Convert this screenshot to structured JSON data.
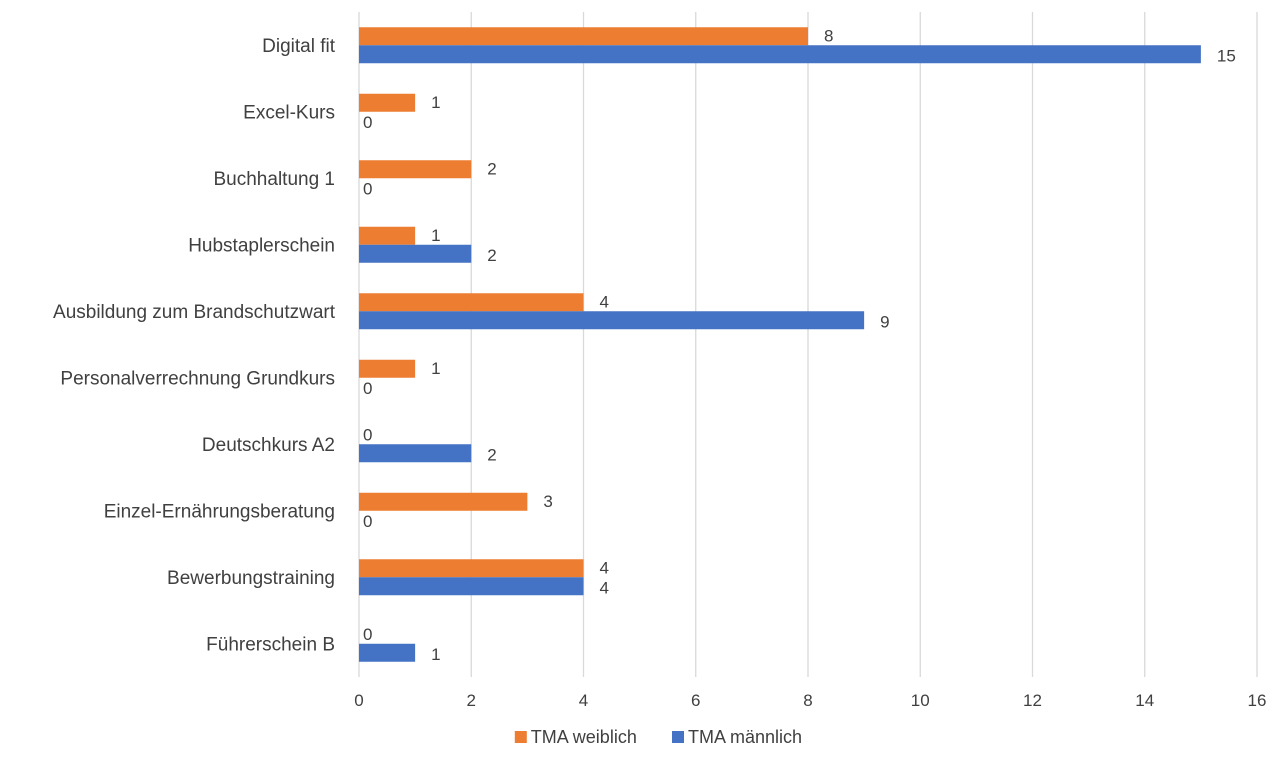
{
  "chart_data": {
    "type": "bar",
    "orientation": "horizontal",
    "title": "",
    "xlabel": "",
    "ylabel": "",
    "categories": [
      "Digital fit",
      "Excel-Kurs",
      "Buchhaltung 1",
      "Hubstaplerschein",
      "Ausbildung zum Brandschutzwart",
      "Personalverrechnung Grundkurs",
      "Deutschkurs A2",
      "Einzel-Ernährungsberatung",
      "Bewerbungstraining",
      "Führerschein B"
    ],
    "series": [
      {
        "name": "TMA weiblich",
        "color": "#ED7D31",
        "values": [
          8,
          1,
          2,
          1,
          4,
          1,
          0,
          3,
          4,
          0
        ]
      },
      {
        "name": "TMA männlich",
        "color": "#4472C4",
        "values": [
          15,
          0,
          0,
          2,
          9,
          0,
          2,
          0,
          4,
          1
        ]
      }
    ],
    "xlim": [
      0,
      16
    ],
    "xticks": [
      "0",
      "2",
      "4",
      "6",
      "8",
      "10",
      "12",
      "14",
      "16"
    ],
    "grid": true,
    "data_labels": true,
    "legend_position": "bottom"
  }
}
